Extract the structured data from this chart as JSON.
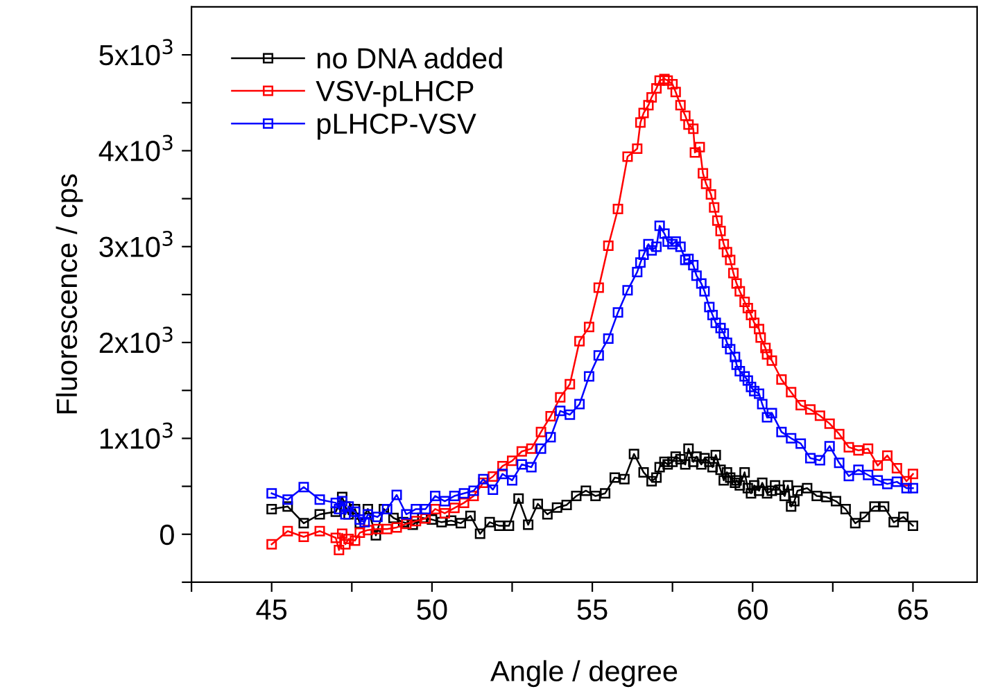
{
  "chart_data": {
    "type": "line",
    "xlabel": "Angle / degree",
    "ylabel": "Fluorescence / cps",
    "xlim": [
      42.5,
      67
    ],
    "ylim": [
      -500,
      5500
    ],
    "xticks": [
      {
        "value": 42.5,
        "label": null
      },
      45,
      {
        "value": 47.5,
        "label": null
      },
      50,
      {
        "value": 52.5,
        "label": null
      },
      55,
      {
        "value": 57.5,
        "label": null
      },
      60,
      {
        "value": 62.5,
        "label": null
      },
      65
    ],
    "yticks": [
      {
        "value": -500,
        "label": null
      },
      0,
      {
        "value": 500,
        "label": null
      },
      {
        "value": 1000,
        "label": "1x10$^{3}$"
      },
      {
        "value": 1500,
        "label": null
      },
      {
        "value": 2000,
        "label": "2x10$^{3}$"
      },
      {
        "value": 2500,
        "label": null
      },
      {
        "value": 3000,
        "label": "3x10$^{3}$"
      },
      {
        "value": 3500,
        "label": null
      },
      {
        "value": 4000,
        "label": "4x10$^{3}$"
      },
      {
        "value": 4500,
        "label": null
      },
      {
        "value": 5000,
        "label": "5x10$^{3}$"
      }
    ],
    "grid": false,
    "legend": "top left",
    "marker": "square",
    "line_style": "solid",
    "series": [
      {
        "name": "no DNA added",
        "color": "#000000",
        "x": [
          45,
          45.5,
          46,
          46.5,
          47,
          47.2,
          47.3,
          47.4,
          47.6,
          47.75,
          48,
          48.25,
          48.5,
          48.8,
          49.1,
          49.4,
          49.7,
          50,
          50.3,
          50.6,
          50.9,
          51.2,
          51.5,
          51.8,
          52.1,
          52.4,
          52.7,
          53.0,
          53.3,
          53.6,
          53.9,
          54.2,
          54.5,
          54.8,
          55.1,
          55.4,
          55.7,
          56.0,
          56.3,
          56.6,
          56.85,
          57.0,
          57.1,
          57.25,
          57.35,
          57.5,
          57.6,
          57.75,
          57.9,
          58.0,
          58.15,
          58.25,
          58.4,
          58.5,
          58.65,
          58.75,
          58.85,
          59.0,
          59.1,
          59.2,
          59.3,
          59.45,
          59.5,
          59.6,
          59.75,
          59.85,
          59.95,
          60.05,
          60.2,
          60.3,
          60.45,
          60.6,
          60.7,
          60.85,
          61.0,
          61.1,
          61.2,
          61.3,
          61.4,
          61.7,
          62.0,
          62.3,
          62.6,
          62.9,
          63.2,
          63.5,
          63.8,
          64.1,
          64.4,
          64.7,
          65
        ],
        "values": [
          263,
          290,
          115,
          208,
          235,
          388,
          290,
          208,
          263,
          115,
          263,
          -11,
          263,
          170,
          126,
          99,
          170,
          153,
          126,
          142,
          115,
          192,
          5,
          126,
          88,
          88,
          372,
          99,
          317,
          208,
          279,
          306,
          399,
          454,
          399,
          427,
          591,
          574,
          837,
          646,
          553,
          591,
          700,
          755,
          728,
          755,
          810,
          782,
          728,
          892,
          755,
          810,
          728,
          793,
          755,
          700,
          826,
          673,
          563,
          646,
          591,
          536,
          563,
          509,
          646,
          481,
          427,
          509,
          454,
          536,
          427,
          454,
          509,
          465,
          399,
          509,
          290,
          345,
          454,
          481,
          399,
          388,
          345,
          263,
          115,
          181,
          290,
          290,
          126,
          181,
          88
        ]
      },
      {
        "name": "VSV-pLHCP",
        "color": "#ff0000",
        "x": [
          45.0,
          45.5,
          46.0,
          46.5,
          47.0,
          47.1,
          47.2,
          47.3,
          47.4,
          47.6,
          47.75,
          48.0,
          48.3,
          48.6,
          48.9,
          49.2,
          49.5,
          49.8,
          50.1,
          50.4,
          50.7,
          51.0,
          51.3,
          51.6,
          51.9,
          52.2,
          52.5,
          52.8,
          53.1,
          53.4,
          53.7,
          54.0,
          54.3,
          54.6,
          54.9,
          55.2,
          55.5,
          55.8,
          56.1,
          56.4,
          56.5,
          56.6,
          56.75,
          56.85,
          57.0,
          57.1,
          57.25,
          57.35,
          57.5,
          57.6,
          57.75,
          57.9,
          58.0,
          58.15,
          58.2,
          58.35,
          58.45,
          58.55,
          58.7,
          58.8,
          58.9,
          59.0,
          59.1,
          59.2,
          59.3,
          59.4,
          59.5,
          59.6,
          59.75,
          59.85,
          59.95,
          60.05,
          60.2,
          60.25,
          60.4,
          60.45,
          60.6,
          60.9,
          61.2,
          61.5,
          61.8,
          62.1,
          62.4,
          62.7,
          63.0,
          63.3,
          63.6,
          63.9,
          64.2,
          64.5,
          64.8,
          65.0
        ],
        "values": [
          -104,
          33,
          -27,
          33,
          -38,
          -164,
          5,
          -104,
          -49,
          -66,
          16,
          44,
          55,
          55,
          71,
          109,
          137,
          164,
          263,
          219,
          274,
          328,
          399,
          536,
          602,
          711,
          766,
          864,
          892,
          1067,
          1231,
          1428,
          1565,
          2013,
          2161,
          2571,
          3009,
          3392,
          3939,
          4021,
          4294,
          4393,
          4475,
          4557,
          4650,
          4732,
          4748,
          4732,
          4694,
          4612,
          4475,
          4365,
          4272,
          4229,
          3982,
          4037,
          3764,
          3654,
          3545,
          3408,
          3271,
          3162,
          3025,
          2943,
          2861,
          2724,
          2615,
          2533,
          2423,
          2358,
          2287,
          2205,
          2139,
          2051,
          1942,
          1876,
          1811,
          1614,
          1482,
          1346,
          1302,
          1236,
          1154,
          1045,
          908,
          875,
          892,
          717,
          821,
          689,
          553,
          629
        ]
      },
      {
        "name": "pLHCP-VSV",
        "color": "#0000ff",
        "x": [
          45,
          45.5,
          46,
          46.5,
          47,
          47.1,
          47.2,
          47.3,
          47.4,
          47.6,
          47.75,
          47.9,
          48.0,
          48.3,
          48.6,
          48.9,
          49.2,
          49.5,
          49.8,
          50.1,
          50.4,
          50.7,
          51.0,
          51.3,
          51.6,
          51.9,
          52.2,
          52.5,
          52.8,
          53.1,
          53.4,
          53.7,
          54.0,
          54.3,
          54.6,
          54.9,
          55.2,
          55.5,
          55.8,
          56.1,
          56.4,
          56.5,
          56.6,
          56.75,
          56.85,
          57.0,
          57.1,
          57.25,
          57.35,
          57.5,
          57.6,
          57.75,
          57.9,
          58.0,
          58.15,
          58.25,
          58.4,
          58.5,
          58.65,
          58.75,
          58.85,
          59.0,
          59.1,
          59.2,
          59.3,
          59.45,
          59.5,
          59.6,
          59.75,
          59.85,
          59.95,
          60.05,
          60.2,
          60.3,
          60.45,
          60.6,
          60.9,
          61.2,
          61.5,
          61.8,
          62.1,
          62.4,
          62.7,
          63.0,
          63.3,
          63.6,
          63.9,
          64.2,
          64.5,
          64.8,
          65.0
        ],
        "values": [
          427,
          361,
          492,
          361,
          328,
          263,
          345,
          208,
          290,
          235,
          153,
          126,
          208,
          181,
          263,
          410,
          208,
          263,
          263,
          399,
          345,
          399,
          427,
          454,
          574,
          465,
          629,
          563,
          728,
          700,
          892,
          1012,
          1286,
          1247,
          1357,
          1647,
          1865,
          2040,
          2314,
          2544,
          2735,
          2834,
          2916,
          3025,
          2960,
          2998,
          3217,
          3135,
          3053,
          3025,
          3053,
          2998,
          2861,
          2872,
          2806,
          2697,
          2615,
          2533,
          2369,
          2287,
          2205,
          2150,
          2095,
          1997,
          1931,
          1849,
          1767,
          1701,
          1647,
          1603,
          1537,
          1493,
          1466,
          1357,
          1220,
          1264,
          1067,
          1001,
          946,
          793,
          771,
          919,
          744,
          607,
          673,
          618,
          563,
          525,
          547,
          481,
          481
        ]
      }
    ]
  }
}
